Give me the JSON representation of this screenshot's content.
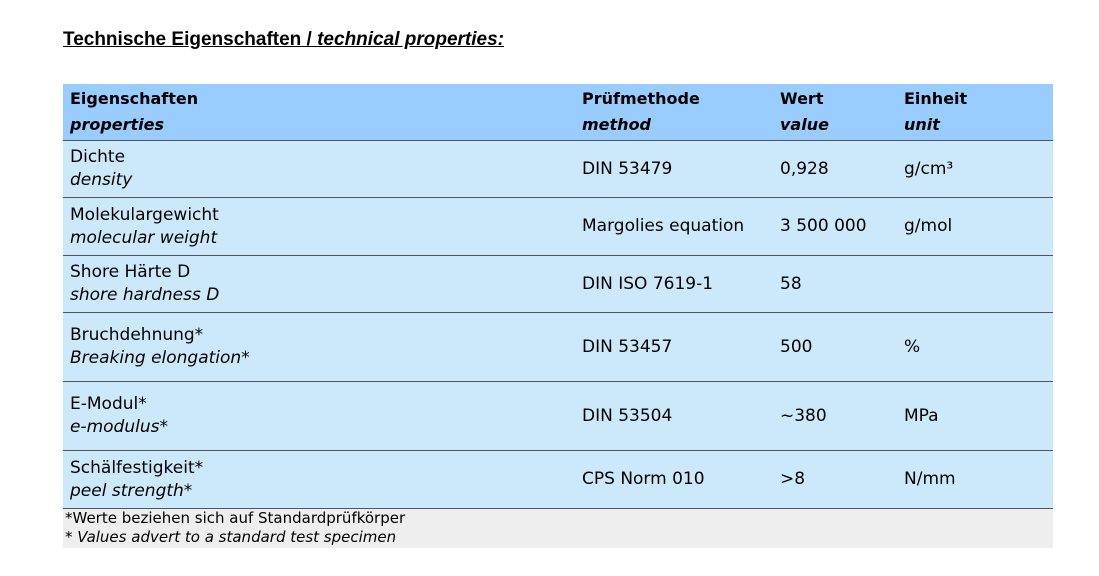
{
  "header": {
    "title": {
      "de": "Technische Eigenschaften /",
      "en": "technical properties:"
    }
  },
  "table": {
    "columns": [
      {
        "de": "Eigenschaften",
        "en": "properties"
      },
      {
        "de": "Prüfmethode",
        "en": "method"
      },
      {
        "de": "Wert",
        "en": "value"
      },
      {
        "de": "Einheit",
        "en": "unit"
      }
    ],
    "rows": [
      {
        "de": "Dichte",
        "en": "density",
        "method": "DIN 53479",
        "value": "0,928",
        "unit": "g/cm³"
      },
      {
        "de": "Molekulargewicht",
        "en": "molecular weight",
        "method": "Margolies equation",
        "value": "3 500 000",
        "unit": "g/mol"
      },
      {
        "de": "Shore Härte D",
        "en": "shore hardness D",
        "method": "DIN ISO 7619-1",
        "value": "58"
      },
      {
        "de": "Bruchdehnung*",
        "en": "Breaking elongation*",
        "method": "DIN 53457",
        "value": "500",
        "unit": "%"
      },
      {
        "de": "E-Modul*",
        "en": "e-modulus*",
        "method": "DIN 53504",
        "value": "~380",
        "unit": "MPa"
      },
      {
        "de": "Schälfestigkeit*",
        "en": "peel strength*",
        "method": "CPS Norm 010",
        "value": ">8",
        "unit": "N/mm"
      }
    ],
    "footnote": [
      "*Werte beziehen sich auf Standardprüfkörper",
      "* Values advert to a standard test specimen"
    ]
  }
}
